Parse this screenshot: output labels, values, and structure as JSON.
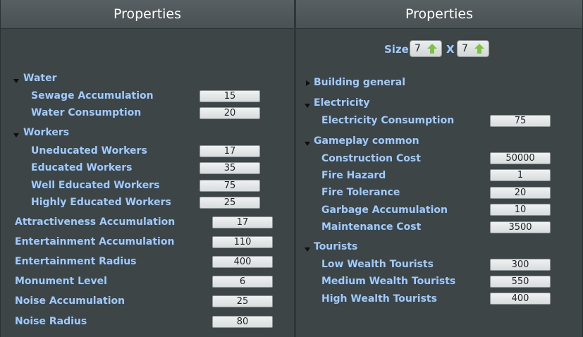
{
  "left": {
    "title": "Properties",
    "water": {
      "label": "Water",
      "sewage": {
        "label": "Sewage Accumulation",
        "value": "15"
      },
      "consumption": {
        "label": "Water Consumption",
        "value": "20"
      }
    },
    "workers": {
      "label": "Workers",
      "uneducated": {
        "label": "Uneducated Workers",
        "value": "17"
      },
      "educated": {
        "label": "Educated Workers",
        "value": "35"
      },
      "well_educated": {
        "label": "Well Educated Workers",
        "value": "75"
      },
      "highly_educated": {
        "label": "Highly Educated Workers",
        "value": "25"
      }
    },
    "attractiveness": {
      "label": "Attractiveness Accumulation",
      "value": "17"
    },
    "entertainment_acc": {
      "label": "Entertainment Accumulation",
      "value": "110"
    },
    "entertainment_radius": {
      "label": "Entertainment Radius",
      "value": "400"
    },
    "monument_level": {
      "label": "Monument Level",
      "value": "6"
    },
    "noise_acc": {
      "label": "Noise Accumulation",
      "value": "25"
    },
    "noise_radius": {
      "label": "Noise Radius",
      "value": "80"
    }
  },
  "right": {
    "title": "Properties",
    "size": {
      "label": "Size",
      "x_value": "7",
      "separator": "X",
      "y_value": "7",
      "up_icon_color": "#7cc243"
    },
    "building_general": {
      "label": "Building general"
    },
    "electricity": {
      "label": "Electricity",
      "consumption": {
        "label": "Electricity Consumption",
        "value": "75"
      }
    },
    "gameplay": {
      "label": "Gameplay common",
      "construction_cost": {
        "label": "Construction Cost",
        "value": "50000"
      },
      "fire_hazard": {
        "label": "Fire Hazard",
        "value": "1"
      },
      "fire_tolerance": {
        "label": "Fire Tolerance",
        "value": "20"
      },
      "garbage": {
        "label": "Garbage Accumulation",
        "value": "10"
      },
      "maintenance": {
        "label": "Maintenance Cost",
        "value": "3500"
      }
    },
    "tourists": {
      "label": "Tourists",
      "low": {
        "label": "Low Wealth Tourists",
        "value": "300"
      },
      "medium": {
        "label": "Medium Wealth Tourists",
        "value": "550"
      },
      "high": {
        "label": "High Wealth Tourists",
        "value": "400"
      }
    }
  }
}
